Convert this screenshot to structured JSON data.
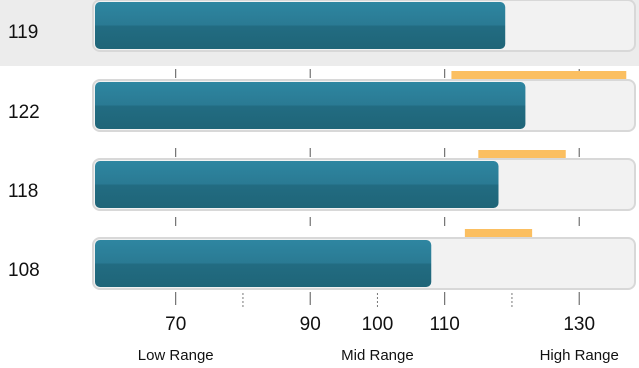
{
  "chart_data": {
    "type": "bar",
    "orientation": "horizontal",
    "categories": [
      "119",
      "122",
      "118",
      "108"
    ],
    "values": [
      119,
      122,
      118,
      108
    ],
    "highlighted_row": "119",
    "target_ranges": [
      null,
      {
        "from": 111,
        "to": 137
      },
      {
        "from": 115,
        "to": 128
      },
      {
        "from": 113,
        "to": 123
      }
    ],
    "x_ticks": [
      {
        "value": 70,
        "label": "70"
      },
      {
        "value": 90,
        "label": "90"
      },
      {
        "value": 100,
        "label": "100"
      },
      {
        "value": 110,
        "label": "110"
      },
      {
        "value": 130,
        "label": "130"
      }
    ],
    "minor_ticks": [
      80,
      100,
      120
    ],
    "xlim": [
      58,
      138
    ],
    "range_labels": [
      {
        "label": "Low Range",
        "value": 70
      },
      {
        "label": "Mid Range",
        "value": 100
      },
      {
        "label": "High Range",
        "value": 130
      }
    ],
    "colors": {
      "bar": "#2a7a93",
      "bar_dark": "#1f6578",
      "track": "#f2f2f2",
      "track_border": "#d8d8d8",
      "target": "#fbbf61",
      "highlight_row": "#ececec"
    }
  }
}
